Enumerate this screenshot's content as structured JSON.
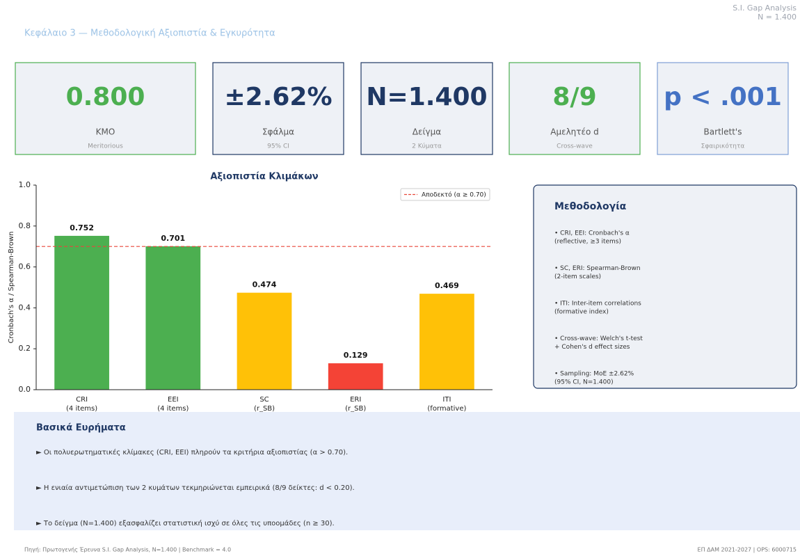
{
  "header": {
    "top_right": [
      "S.I. Gap Analysis",
      "N = 1.400"
    ],
    "title": "Κεφάλαιο 3 — Μεθοδολογική Αξιοπιστία & Εγκυρότητα"
  },
  "kpis": [
    {
      "value": "0.800",
      "label": "KMO",
      "sub": "Meritorious",
      "color": "#4caf50",
      "border": "#4caf50"
    },
    {
      "value": "±2.62%",
      "label": "Σφάλμα",
      "sub": "95% CI",
      "color": "#1f3864",
      "border": "#1f3864"
    },
    {
      "value": "N=1.400",
      "label": "Δείγμα",
      "sub": "2 Κύματα",
      "color": "#1f3864",
      "border": "#1f3864"
    },
    {
      "value": "8/9",
      "label": "Αμελητέο d",
      "sub": "Cross-wave",
      "color": "#4caf50",
      "border": "#4caf50"
    },
    {
      "value": "p < .001",
      "label": "Bartlett's",
      "sub": "Σφαιρικότητα",
      "color": "#4472c4",
      "border": "#7f9fd6"
    }
  ],
  "chart_data": {
    "type": "bar",
    "title": "Αξιοπιστία Κλιμάκων",
    "ylabel": "Cronbach's α / Spearman-Brown",
    "categories": [
      [
        "CRI",
        "(4 items)"
      ],
      [
        "EEI",
        "(4 items)"
      ],
      [
        "SC",
        "(r_SB)"
      ],
      [
        "ERI",
        "(r_SB)"
      ],
      [
        "ITI",
        "(formative)"
      ]
    ],
    "values": [
      0.752,
      0.701,
      0.474,
      0.129,
      0.469
    ],
    "colors": [
      "#4caf50",
      "#4caf50",
      "#ffc107",
      "#f44336",
      "#ffc107"
    ],
    "ylim": [
      0,
      1
    ],
    "yticks": [
      {
        "value": 0,
        "label": "0.0"
      },
      0.2,
      0.4,
      0.6,
      0.8,
      {
        "value": 1,
        "label": "1.0"
      }
    ],
    "reference_line": {
      "value": 0.7,
      "label": "Αποδεκτό (α ≥ 0.70)",
      "color": "#e8463a"
    },
    "legend": "upper right"
  },
  "methodology": {
    "title": "Μεθοδολογία",
    "items": [
      [
        "• CRI, EEI: Cronbach's α",
        "(reflective, ≥3 items)"
      ],
      [
        "• SC, ERI: Spearman-Brown",
        "(2-item scales)"
      ],
      [
        "• ITI: Inter-item correlations",
        "(formative index)"
      ],
      [
        "• Cross-wave: Welch's t-test",
        "+ Cohen's d effect sizes"
      ],
      [
        "• Sampling: MoE ±2.62%",
        "(95% CI, N=1.400)"
      ]
    ]
  },
  "findings": {
    "title": "Βασικά Ευρήματα",
    "items": [
      "► Οι πολυερωτηματικές κλίμακες (CRI, EEI) πληρούν τα κριτήρια αξιοπιστίας (α > 0.70).",
      "► Η ενιαία αντιμετώπιση των 2 κυμάτων τεκμηριώνεται εμπειρικά (8/9 δείκτες: d < 0.20).",
      "► Το δείγμα (N=1.400) εξασφαλίζει στατιστική ισχύ σε όλες τις υποομάδες (n ≥ 30)."
    ]
  },
  "footer": {
    "left": "Πηγή: Πρωτογενής Έρευνα S.I. Gap Analysis, N=1.400 | Benchmark = 4.0",
    "right": "ΕΠ ΔΑΜ 2021-2027 | OPS: 6000715"
  }
}
